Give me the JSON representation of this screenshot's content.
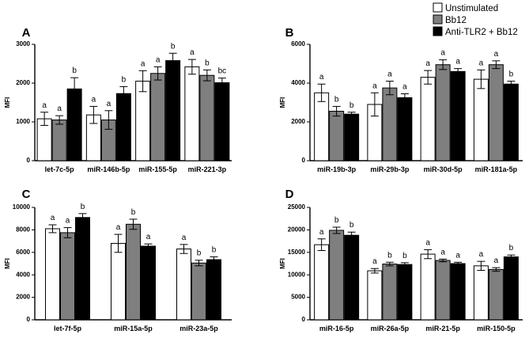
{
  "legend": [
    {
      "label": "Unstimulated",
      "color": "#ffffff"
    },
    {
      "label": "Bb12",
      "color": "#7f7f7f"
    },
    {
      "label": "Anti-TLR2 + Bb12",
      "color": "#000000"
    }
  ],
  "chart_data": [
    {
      "panel": "A",
      "type": "bar",
      "ylabel": "MFI",
      "ylim": [
        0,
        3000
      ],
      "yticks": [
        0,
        1000,
        2000,
        3000
      ],
      "categories": [
        "let-7c-5p",
        "miR-146b-5p",
        "miR-155-5p",
        "miR-221-3p"
      ],
      "series": [
        {
          "name": "Unstimulated",
          "values": [
            1080,
            1180,
            2050,
            2420
          ],
          "errors": [
            170,
            220,
            270,
            190
          ]
        },
        {
          "name": "Bb12",
          "values": [
            1050,
            1050,
            2250,
            2200
          ],
          "errors": [
            110,
            240,
            170,
            140
          ]
        },
        {
          "name": "Anti-TLR2 + Bb12",
          "values": [
            1850,
            1730,
            2580,
            2010
          ],
          "errors": [
            290,
            180,
            190,
            120
          ]
        }
      ],
      "letters": [
        [
          "a",
          "a",
          "b"
        ],
        [
          "a",
          "a",
          "b"
        ],
        [
          "a",
          "a",
          "b"
        ],
        [
          "a",
          "b",
          "bc"
        ]
      ]
    },
    {
      "panel": "B",
      "type": "bar",
      "ylabel": "MFI",
      "ylim": [
        0,
        6000
      ],
      "yticks": [
        0,
        2000,
        4000,
        6000
      ],
      "categories": [
        "miR-19b-3p",
        "miR-29b-3p",
        "miR-30d-5p",
        "miR-181a-5p"
      ],
      "series": [
        {
          "name": "Unstimulated",
          "values": [
            3500,
            2900,
            4300,
            4200
          ],
          "errors": [
            450,
            600,
            350,
            480
          ]
        },
        {
          "name": "Bb12",
          "values": [
            2550,
            3750,
            4950,
            4950
          ],
          "errors": [
            250,
            350,
            250,
            200
          ]
        },
        {
          "name": "Anti-TLR2 + Bb12",
          "values": [
            2400,
            3250,
            4600,
            3950
          ],
          "errors": [
            100,
            200,
            150,
            150
          ]
        }
      ],
      "letters": [
        [
          "a",
          "b",
          "b"
        ],
        [
          "a",
          "a",
          "a"
        ],
        [
          "a",
          "a",
          "a"
        ],
        [
          "a",
          "a",
          "b"
        ]
      ]
    },
    {
      "panel": "C",
      "type": "bar",
      "ylabel": "MFI",
      "ylim": [
        0,
        10000
      ],
      "yticks": [
        0,
        2000,
        4000,
        6000,
        8000,
        10000
      ],
      "categories": [
        "let-7f-5p",
        "miR-15a-5p",
        "miR-23a-5p"
      ],
      "series": [
        {
          "name": "Unstimulated",
          "values": [
            8100,
            6800,
            6300
          ],
          "errors": [
            350,
            800,
            400
          ]
        },
        {
          "name": "Bb12",
          "values": [
            7750,
            8500,
            5050
          ],
          "errors": [
            450,
            450,
            250
          ]
        },
        {
          "name": "Anti-TLR2 + Bb12",
          "values": [
            9100,
            6550,
            5350
          ],
          "errors": [
            350,
            200,
            250
          ]
        }
      ],
      "letters": [
        [
          "a",
          "a",
          "b"
        ],
        [
          "a",
          "b",
          "a"
        ],
        [
          "a",
          "b",
          "b"
        ]
      ]
    },
    {
      "panel": "D",
      "type": "bar",
      "ylabel": "MFI",
      "ylim": [
        0,
        25000
      ],
      "yticks": [
        0,
        5000,
        10000,
        15000,
        20000,
        25000
      ],
      "categories": [
        "miR-16-5p",
        "miR-26a-5p",
        "miR-21-5p",
        "miR-150-5p"
      ],
      "series": [
        {
          "name": "Unstimulated",
          "values": [
            16700,
            10900,
            14600,
            12000
          ],
          "errors": [
            1300,
            500,
            1000,
            1000
          ]
        },
        {
          "name": "Bb12",
          "values": [
            19900,
            12400,
            13200,
            11200
          ],
          "errors": [
            700,
            400,
            300,
            400
          ]
        },
        {
          "name": "Anti-TLR2 + Bb12",
          "values": [
            18800,
            12300,
            12500,
            14000
          ],
          "errors": [
            700,
            400,
            300,
            400
          ]
        }
      ],
      "letters": [
        [
          "a",
          "b",
          "b"
        ],
        [
          "a",
          "b",
          "b"
        ],
        [
          "a",
          "a",
          "a"
        ],
        [
          "a",
          "a",
          "b"
        ]
      ]
    }
  ]
}
